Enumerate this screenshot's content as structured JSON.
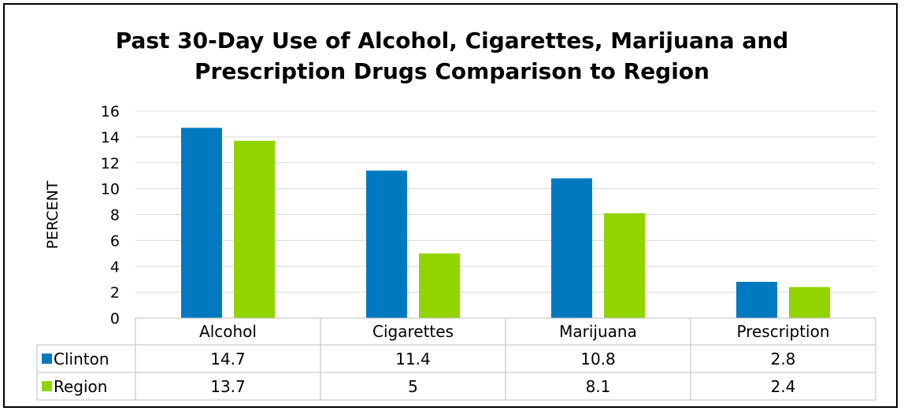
{
  "chart_data": {
    "type": "bar",
    "title_lines": [
      "Past 30-Day Use of Alcohol, Cigarettes, Marijuana and",
      "Prescription Drugs Comparison to Region"
    ],
    "xlabel": "",
    "ylabel": "PERCENT",
    "ylim": [
      0,
      16
    ],
    "yticks": [
      0,
      2,
      4,
      6,
      8,
      10,
      12,
      14,
      16
    ],
    "grid": true,
    "legend_placement": "data-table",
    "categories": [
      "Alcohol",
      "Cigarettes",
      "Marijuana",
      "Prescription"
    ],
    "series": [
      {
        "name": "Clinton",
        "color": "#0079C0",
        "values": [
          14.7,
          11.4,
          10.8,
          2.8
        ],
        "labels": [
          "14.7",
          "11.4",
          "10.8",
          "2.8"
        ]
      },
      {
        "name": "Region",
        "color": "#92D400",
        "values": [
          13.7,
          5,
          8.1,
          2.4
        ],
        "labels": [
          "13.7",
          "5",
          "8.1",
          "2.4"
        ]
      }
    ]
  }
}
